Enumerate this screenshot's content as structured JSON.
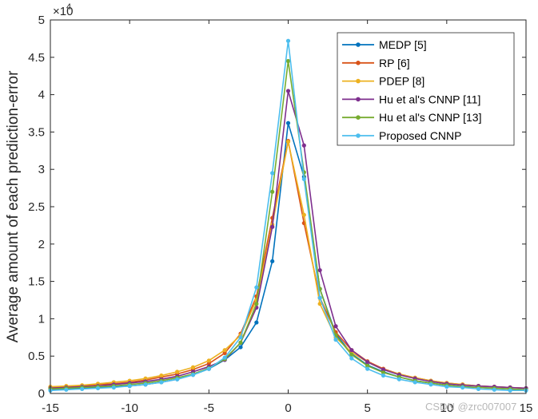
{
  "chart_data": {
    "type": "line",
    "title": "",
    "xlabel": "",
    "ylabel": "Average amount of each prediction-error",
    "y_scale_label": "×10",
    "y_scale_exponent": "4",
    "xlim": [
      -15,
      15
    ],
    "ylim": [
      0,
      5
    ],
    "x_ticks": [
      -15,
      -10,
      -5,
      0,
      5,
      10,
      15
    ],
    "x_tick_labels": [
      "-15",
      "-10",
      "-5",
      "0",
      "5",
      "10",
      "15"
    ],
    "y_ticks": [
      0,
      0.5,
      1,
      1.5,
      2,
      2.5,
      3,
      3.5,
      4,
      4.5,
      5
    ],
    "y_tick_labels": [
      "0",
      "0.5",
      "1",
      "1.5",
      "2",
      "2.5",
      "3",
      "3.5",
      "4",
      "4.5",
      "5"
    ],
    "grid": false,
    "legend_position": "top-right",
    "x": [
      -15,
      -14,
      -13,
      -12,
      -11,
      -10,
      -9,
      -8,
      -7,
      -6,
      -5,
      -4,
      -3,
      -2,
      -1,
      0,
      1,
      2,
      3,
      4,
      5,
      6,
      7,
      8,
      9,
      10,
      11,
      12,
      13,
      14,
      15
    ],
    "series": [
      {
        "name": "MEDP [5]",
        "color": "#0072BD",
        "values": [
          0.05,
          0.06,
          0.07,
          0.08,
          0.09,
          0.1,
          0.12,
          0.15,
          0.19,
          0.25,
          0.33,
          0.45,
          0.62,
          0.95,
          1.77,
          3.62,
          2.9,
          1.4,
          0.8,
          0.53,
          0.38,
          0.29,
          0.22,
          0.17,
          0.14,
          0.11,
          0.09,
          0.08,
          0.07,
          0.06,
          0.05
        ]
      },
      {
        "name": "RP [6]",
        "color": "#D95319",
        "values": [
          0.08,
          0.09,
          0.1,
          0.12,
          0.13,
          0.15,
          0.18,
          0.22,
          0.26,
          0.32,
          0.4,
          0.54,
          0.8,
          1.3,
          2.35,
          3.38,
          2.28,
          1.28,
          0.82,
          0.58,
          0.43,
          0.33,
          0.26,
          0.21,
          0.17,
          0.14,
          0.12,
          0.1,
          0.09,
          0.08,
          0.07
        ]
      },
      {
        "name": "PDEP [8]",
        "color": "#EDB120",
        "values": [
          0.09,
          0.1,
          0.11,
          0.13,
          0.15,
          0.17,
          0.2,
          0.24,
          0.29,
          0.35,
          0.44,
          0.58,
          0.78,
          1.25,
          2.26,
          3.37,
          2.39,
          1.2,
          0.75,
          0.55,
          0.42,
          0.32,
          0.26,
          0.21,
          0.17,
          0.14,
          0.12,
          0.1,
          0.09,
          0.08,
          0.07
        ]
      },
      {
        "name": "Hu et al's CNNP [11]",
        "color": "#7E2F8E",
        "values": [
          0.07,
          0.08,
          0.09,
          0.1,
          0.12,
          0.14,
          0.16,
          0.19,
          0.23,
          0.29,
          0.36,
          0.45,
          0.68,
          1.15,
          2.23,
          4.05,
          3.32,
          1.65,
          0.9,
          0.58,
          0.42,
          0.32,
          0.25,
          0.2,
          0.16,
          0.13,
          0.11,
          0.1,
          0.09,
          0.08,
          0.07
        ]
      },
      {
        "name": "Hu et al's CNNP [13]",
        "color": "#77AC30",
        "values": [
          0.06,
          0.07,
          0.08,
          0.09,
          0.1,
          0.12,
          0.14,
          0.17,
          0.21,
          0.26,
          0.34,
          0.46,
          0.68,
          1.2,
          2.7,
          4.45,
          2.96,
          1.4,
          0.78,
          0.52,
          0.37,
          0.28,
          0.22,
          0.17,
          0.14,
          0.11,
          0.09,
          0.08,
          0.07,
          0.06,
          0.05
        ]
      },
      {
        "name": "Proposed CNNP",
        "color": "#4DBEEE",
        "values": [
          0.04,
          0.05,
          0.06,
          0.07,
          0.08,
          0.1,
          0.12,
          0.15,
          0.19,
          0.25,
          0.33,
          0.48,
          0.75,
          1.42,
          2.95,
          4.72,
          2.87,
          1.28,
          0.72,
          0.47,
          0.33,
          0.24,
          0.19,
          0.15,
          0.12,
          0.09,
          0.08,
          0.06,
          0.05,
          0.04,
          0.04
        ]
      }
    ]
  },
  "watermark": "CSDN @zrc007007"
}
